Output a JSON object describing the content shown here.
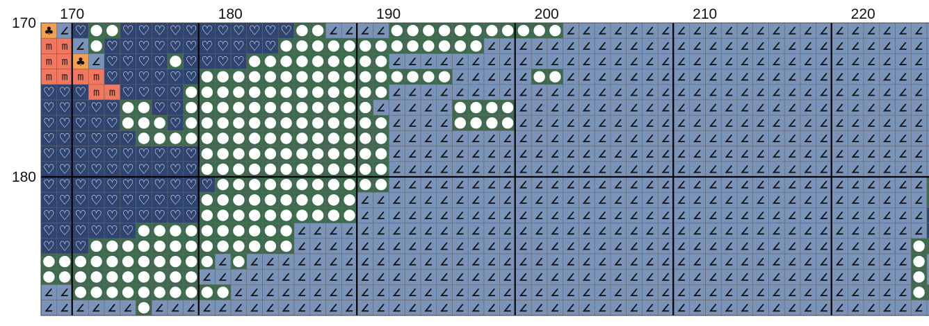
{
  "pattern": {
    "first_column": 170,
    "first_row": 170,
    "column_labels": [
      "170",
      "180",
      "190",
      "200",
      "210",
      "220"
    ],
    "row_labels": [
      "170",
      "180"
    ],
    "column_label_values": [
      170,
      180,
      190,
      200,
      210,
      220
    ],
    "row_label_values": [
      170,
      180
    ],
    "legend": {
      "c": {
        "name": "club",
        "color": "#f0a050",
        "glyph": "♣",
        "glyph_color": "#111111"
      },
      "m": {
        "name": "m-salmon",
        "color": "#f07860",
        "glyph": "m",
        "glyph_color": "#222222"
      },
      "h": {
        "name": "heart-navy",
        "color": "#2f4470",
        "glyph": "♡",
        "glyph_color": "#ffffff"
      },
      "o": {
        "name": "circle-green",
        "color": "#3d6b4e",
        "glyph": "●",
        "glyph_color": "#ffffff"
      },
      "z": {
        "name": "angle-slate",
        "color": "#7a93b8",
        "glyph": "∠",
        "glyph_color": "#111111"
      }
    },
    "rows": [
      "czhoohhhhhhhhhhhoozzzzooooooooooozzzzzzzzzzzzzzzzzzzzzzzzzzz",
      "mmzohhhhhhhhhhhooooooooooooozzzzzzzzzzzzzzzzzzzzzzzzzzzzzzzo",
      "mmczhhhhohhhhooooooooozzzzzzzzzzzzzzzzzzzzzzzzzzzzzzzzzzzzzz",
      "mmmmhhhhhhoooooooooooooooozzzzzoozzzzzzzzzzzzzzzzzzzzzzzzzzz",
      "hhhmmhhhhooooooooooooozzzzzzzzzzzzzzzzzzzzzzzzzzzzzzzzzzzzzz",
      "hhhhhoohhoooooooooooozzzzzoooozzzzzzzzzzzzzzzzzzzzzzzzzzzzzo",
      "hhhhhooohooooooooooooozzzzoooozzzzzzzzzzzzzzzzzzzzzzzzzzzzzo",
      "hhhhhhoooooooooooooooozzzzzzzzzzzzzzzzzzzzzzzzzzzzzzzzzzzzzz",
      "hhhhhhhhhhoooooooooooozzzzzzzzzzzzzzzzzzzzzzzzzzzzzzzzzzzzzz",
      "hhhhhhhhhhoooooooooooozzzzzzzzzzzzzzzzzzzzzzzzzzzzzzzzzzzzzo",
      "hhhhhhhhhhhooooooooooozzzzzzzzzzzzzzzzzzzzzzzzzzzzzzzzzzozzo",
      "hhhhhhhhhhoooooooooozzzzzzzzzzzzzzzzzzzzzzzzzzzzzzzzzzzzoozz",
      "hhhhhhhhhhoooooooooozzzzzzzzzzzzzzzzzzzzzzzzzzzzzzzzzzzzhhoz",
      "hhhhhhoooooooooozzzzzzzzzzzzzzzzzzzzzzzzzzzzzzzzzzzzzzzzhhoz",
      "hhhooooooooooooozzzzzzzzzzzzzzzzzzzzzzzzzzzzzzzzzzzzzzzoohho",
      "ooooooooooozozzzzzzzzzzzzzzzzzzzzzzzzzzzzzzzzzzzzzzzzzzozzhh",
      "oooooooooozzzzzzzzzzzzzzzzzzzzzzzzzzzzzzzzzzzzzzzzzzzzzozooo",
      "zzoooooooooozzzzzzzzzzzzzzzzzzzzzzzzzzzzzzzzzzzzzzzzzzzoozzh",
      "zzzzzzozzzzzzzzzzzzzzzzzzzzzzzzzzzzzzzzzzzzzzzzzzzzzzzzzzooo"
    ]
  }
}
